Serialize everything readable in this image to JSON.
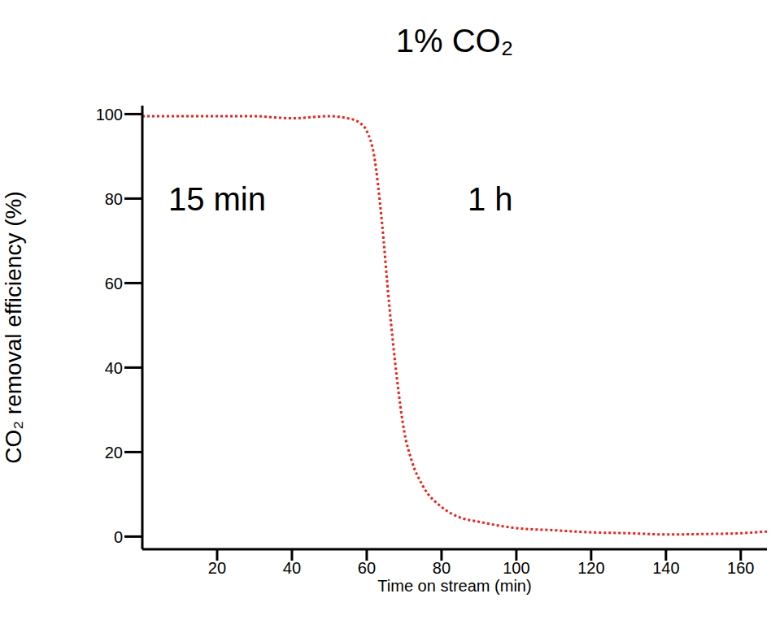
{
  "chart_data": {
    "type": "line",
    "title": "1% CO₂",
    "x_label": "Time on stream (min)",
    "y_label": "CO₂ removal efficiency (%)",
    "x": [
      0,
      10,
      20,
      30,
      40,
      50,
      55,
      58,
      60,
      62,
      64,
      66,
      68,
      70,
      72,
      75,
      80,
      85,
      90,
      100,
      110,
      120,
      130,
      140,
      150,
      160,
      167
    ],
    "series": [
      {
        "name": "CO₂ removal efficiency",
        "color": "#e8231c",
        "line_style": "dotted",
        "values": [
          99.5,
          99.5,
          99.5,
          99.5,
          99,
          99.5,
          99,
          98,
          96,
          90,
          75,
          55,
          38,
          25,
          18,
          12,
          7,
          4.5,
          3.5,
          2,
          1.5,
          1,
          0.8,
          0.5,
          0.6,
          0.8,
          1.2
        ]
      }
    ],
    "xlim": [
      0,
      167
    ],
    "xticks": [
      20,
      40,
      60,
      80,
      100,
      120,
      140,
      160
    ],
    "ylim": [
      -3,
      102
    ],
    "yticks": [
      0,
      20,
      40,
      60,
      80,
      100
    ],
    "grid": false,
    "annotations": [
      {
        "text": "15 min",
        "x": 20,
        "y": 80
      },
      {
        "text": "1 h",
        "x": 93,
        "y": 80
      }
    ]
  }
}
